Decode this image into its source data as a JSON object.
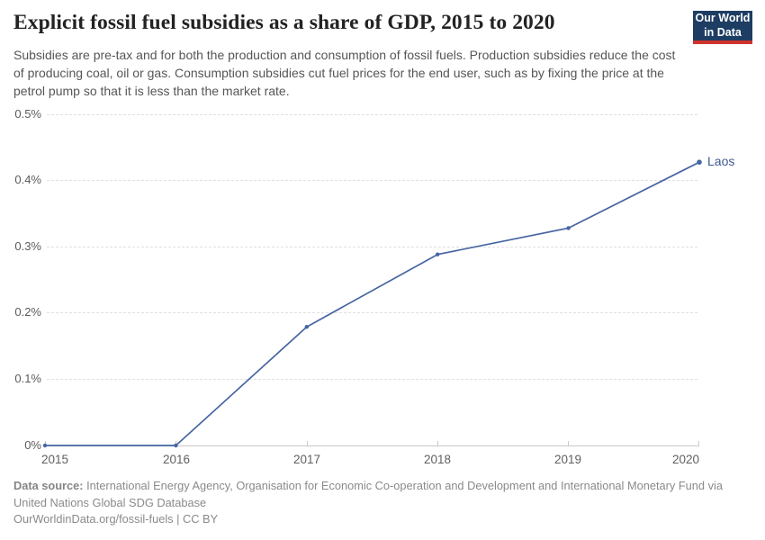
{
  "header": {
    "title": "Explicit fossil fuel subsidies as a share of GDP, 2015 to 2020",
    "subtitle": "Subsidies are pre-tax and for both the production and consumption of fossil fuels. Production subsidies reduce the cost of producing coal, oil or gas. Consumption subsidies cut fuel prices for the end user, such as by fixing the price at the petrol pump so that it is less than the market rate.",
    "logo_line1": "Our World",
    "logo_line2": "in Data"
  },
  "chart_data": {
    "type": "line",
    "title": "Explicit fossil fuel subsidies as a share of GDP, 2015 to 2020",
    "x": [
      2015,
      2016,
      2017,
      2018,
      2019,
      2020
    ],
    "series": [
      {
        "name": "Laos",
        "values": [
          0,
          0,
          0.18,
          0.29,
          0.33,
          0.43
        ],
        "color": "#4665A2"
      }
    ],
    "unit": "% of GDP",
    "ylim": [
      0,
      0.5
    ],
    "ytick_labels": [
      "0%",
      "0.1%",
      "0.2%",
      "0.3%",
      "0.4%",
      "0.5%"
    ],
    "xtick_labels": [
      "2015",
      "2016",
      "2017",
      "2018",
      "2019",
      "2020"
    ],
    "grid": "horizontal-dashed",
    "legend_position": "end-of-line"
  },
  "colors": {
    "line": "#4665A2",
    "series_label": "#3D5A8F",
    "logo_bg": "#1D3D63",
    "logo_stripe": "#D0332C"
  },
  "footer": {
    "datasource_label": "Data source:",
    "datasource_text": " International Energy Agency, Organisation for Economic Co-operation and Development and International Monetary Fund via United Nations Global SDG Database",
    "license_text": "OurWorldinData.org/fossil-fuels | CC BY"
  }
}
